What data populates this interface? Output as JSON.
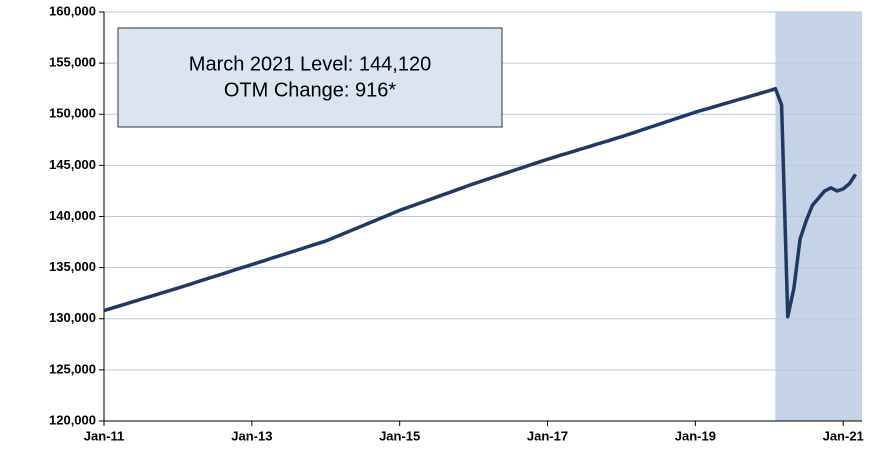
{
  "chart_data": {
    "type": "line",
    "annotation": [
      "March 2021 Level: 144,120",
      "OTM Change: 916*"
    ],
    "categories": [
      "Jan-11",
      null,
      null,
      null,
      null,
      null,
      null,
      null,
      null,
      null,
      null,
      null,
      null,
      null,
      null,
      null,
      null,
      null,
      null,
      null,
      null,
      null,
      null,
      null,
      "Jan-13",
      null,
      null,
      null,
      null,
      null,
      null,
      null,
      null,
      null,
      null,
      null,
      null,
      null,
      null,
      null,
      null,
      null,
      null,
      null,
      null,
      null,
      null,
      null,
      "Jan-15",
      null,
      null,
      null,
      null,
      null,
      null,
      null,
      null,
      null,
      null,
      null,
      null,
      null,
      null,
      null,
      null,
      null,
      null,
      null,
      null,
      null,
      null,
      null,
      "Jan-17",
      null,
      null,
      null,
      null,
      null,
      null,
      null,
      null,
      null,
      null,
      null,
      null,
      null,
      null,
      null,
      null,
      null,
      null,
      null,
      null,
      null,
      null,
      null,
      "Jan-19",
      null,
      null,
      null,
      null,
      null,
      null,
      null,
      null,
      null,
      null,
      null,
      null,
      null,
      null,
      null,
      null,
      null,
      null,
      null,
      null,
      null,
      null,
      null,
      "Jan-21",
      null,
      null
    ],
    "series": [
      {
        "color": "#1f3864",
        "values": [
          130800,
          130980,
          131170,
          131350,
          131530,
          131720,
          131900,
          132080,
          132270,
          132450,
          132630,
          132820,
          133000,
          133190,
          133380,
          133580,
          133770,
          133960,
          134150,
          134340,
          134530,
          134730,
          134920,
          135110,
          135300,
          135490,
          135680,
          135880,
          136070,
          136260,
          136450,
          136640,
          136830,
          137030,
          137220,
          137410,
          137600,
          137850,
          138100,
          138350,
          138600,
          138850,
          139100,
          139350,
          139600,
          139850,
          140100,
          140350,
          140600,
          140820,
          141030,
          141250,
          141470,
          141680,
          141900,
          142120,
          142330,
          142550,
          142770,
          142980,
          143200,
          143400,
          143600,
          143800,
          144000,
          144200,
          144400,
          144600,
          144800,
          145000,
          145200,
          145400,
          145600,
          145780,
          145970,
          146150,
          146330,
          146520,
          146700,
          146880,
          147070,
          147250,
          147430,
          147620,
          147800,
          148000,
          148200,
          148400,
          148600,
          148800,
          149000,
          149200,
          149400,
          149600,
          149800,
          150000,
          150200,
          150380,
          150550,
          150730,
          150900,
          151080,
          151250,
          151430,
          151600,
          151780,
          151950,
          152130,
          152300,
          152500,
          150900,
          130200,
          133000,
          137800,
          139600,
          141100,
          141800,
          142500,
          142800,
          142500,
          142700,
          143200,
          144120
        ]
      }
    ],
    "shade": {
      "start": 109,
      "color": "#c5d3e8"
    },
    "ylim": [
      120000,
      160000
    ],
    "yticks": [
      {
        "value": 120000,
        "label": "120,000"
      },
      {
        "value": 125000,
        "label": "125,000"
      },
      {
        "value": 130000,
        "label": "130,000"
      },
      {
        "value": 135000,
        "label": "135,000"
      },
      {
        "value": 140000,
        "label": "140,000"
      },
      {
        "value": 145000,
        "label": "145,000"
      },
      {
        "value": 150000,
        "label": "150,000"
      },
      {
        "value": 155000,
        "label": "155,000"
      },
      {
        "value": 160000,
        "label": "160,000"
      }
    ],
    "grid": true
  }
}
